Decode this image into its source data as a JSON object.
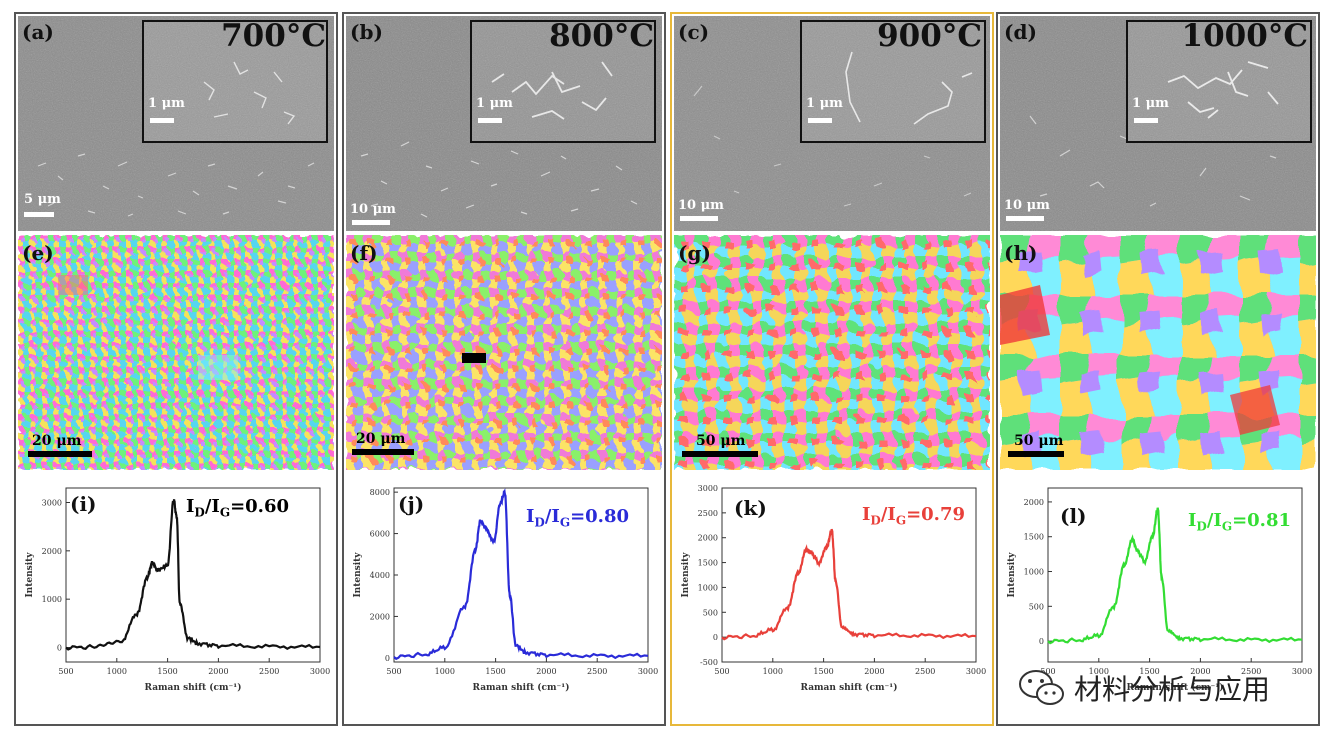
{
  "figure": {
    "panels": [
      {
        "temperature": "700°C",
        "sem": {
          "label": "(a)",
          "scale_main": "5 μm",
          "scale_inset": "1 μm"
        },
        "ebsd": {
          "label": "(e)",
          "scale": "20 μm"
        },
        "raman": {
          "label": "(i)",
          "ratio_prefix": "I",
          "ratio_sub_d": "D",
          "ratio_mid": "/I",
          "ratio_sub_g": "G",
          "ratio_value": "=0.60",
          "color": "#111111"
        }
      },
      {
        "temperature": "800°C",
        "sem": {
          "label": "(b)",
          "scale_main": "10 μm",
          "scale_inset": "1 μm"
        },
        "ebsd": {
          "label": "(f)",
          "scale": "20 μm"
        },
        "raman": {
          "label": "(j)",
          "ratio_prefix": "I",
          "ratio_sub_d": "D",
          "ratio_mid": "/I",
          "ratio_sub_g": "G",
          "ratio_value": "=0.80",
          "color": "#2a2bd8"
        }
      },
      {
        "temperature": "900°C",
        "sem": {
          "label": "(c)",
          "scale_main": "10 μm",
          "scale_inset": "1 μm"
        },
        "ebsd": {
          "label": "(g)",
          "scale": "50 μm"
        },
        "raman": {
          "label": "(k)",
          "ratio_prefix": "I",
          "ratio_sub_d": "D",
          "ratio_mid": "/I",
          "ratio_sub_g": "G",
          "ratio_value": "=0.79",
          "color": "#e8403a"
        }
      },
      {
        "temperature": "1000°C",
        "sem": {
          "label": "(d)",
          "scale_main": "10 μm",
          "scale_inset": "1 μm"
        },
        "ebsd": {
          "label": "(h)",
          "scale": "50 μm"
        },
        "raman": {
          "label": "(l)",
          "ratio_prefix": "I",
          "ratio_sub_d": "D",
          "ratio_mid": "/I",
          "ratio_sub_g": "G",
          "ratio_value": "=0.81",
          "color": "#33dd33"
        }
      }
    ],
    "watermark": "材料分析与应用"
  },
  "chart_data": [
    {
      "type": "line",
      "xlabel": "Raman shift (cm⁻¹)",
      "ylabel": "Intensity",
      "xlim": [
        500,
        3000
      ],
      "x_ticks": [
        "500",
        "1000",
        "1500",
        "2000",
        "2500",
        "3000"
      ],
      "ylim": [
        -300,
        3300
      ],
      "y_ticks": [
        "0",
        "1000",
        "2000",
        "3000"
      ],
      "series": [
        {
          "x": [
            500,
            800,
            1050,
            1200,
            1300,
            1350,
            1400,
            1500,
            1560,
            1590,
            1620,
            1700,
            1800,
            2000,
            2500,
            3000
          ],
          "values": [
            0,
            10,
            150,
            700,
            1450,
            1750,
            1600,
            1700,
            3050,
            2700,
            900,
            200,
            80,
            40,
            20,
            10
          ]
        }
      ]
    },
    {
      "type": "line",
      "xlabel": "Raman shift (cm⁻¹)",
      "ylabel": "Intensity",
      "xlim": [
        500,
        3000
      ],
      "x_ticks": [
        "500",
        "1000",
        "1500",
        "2000",
        "2500",
        "3000"
      ],
      "ylim": [
        -200,
        8200
      ],
      "y_ticks": [
        "0",
        "2000",
        "4000",
        "6000",
        "8000"
      ],
      "series": [
        {
          "x": [
            500,
            800,
            1000,
            1200,
            1300,
            1350,
            1400,
            1480,
            1550,
            1590,
            1640,
            1700,
            1800,
            2000,
            2500,
            3000
          ],
          "values": [
            50,
            150,
            500,
            2500,
            5200,
            6600,
            6300,
            5600,
            7500,
            8000,
            3000,
            600,
            250,
            150,
            100,
            100
          ]
        }
      ]
    },
    {
      "type": "line",
      "xlabel": "Raman shift (cm⁻¹)",
      "ylabel": "Intensity",
      "xlim": [
        500,
        3000
      ],
      "x_ticks": [
        "500",
        "1000",
        "1500",
        "2000",
        "2500",
        "3000"
      ],
      "ylim": [
        -500,
        3000
      ],
      "y_ticks": [
        "-500",
        "0",
        "500",
        "1000",
        "1500",
        "2000",
        "2500",
        "3000"
      ],
      "series": [
        {
          "x": [
            500,
            800,
            1000,
            1150,
            1250,
            1330,
            1380,
            1450,
            1530,
            1580,
            1620,
            1680,
            1800,
            2000,
            2500,
            3000
          ],
          "values": [
            0,
            20,
            150,
            600,
            1300,
            1750,
            1700,
            1500,
            1800,
            2150,
            1100,
            200,
            60,
            40,
            30,
            20
          ]
        }
      ]
    },
    {
      "type": "line",
      "xlabel": "Raman shift (cm⁻¹)",
      "ylabel": "Intensity",
      "xlim": [
        500,
        3000
      ],
      "x_ticks": [
        "500",
        "1000",
        "1500",
        "2000",
        "2500",
        "3000"
      ],
      "ylim": [
        -300,
        2200
      ],
      "y_ticks": [
        "0",
        "500",
        "1000",
        "1500",
        "2000"
      ],
      "series": [
        {
          "x": [
            500,
            800,
            1000,
            1150,
            1250,
            1330,
            1380,
            1450,
            1530,
            1580,
            1620,
            1680,
            1800,
            2000,
            2500,
            3000
          ],
          "values": [
            0,
            10,
            80,
            500,
            1100,
            1450,
            1300,
            1150,
            1500,
            1900,
            900,
            150,
            40,
            30,
            20,
            20
          ]
        }
      ]
    }
  ]
}
